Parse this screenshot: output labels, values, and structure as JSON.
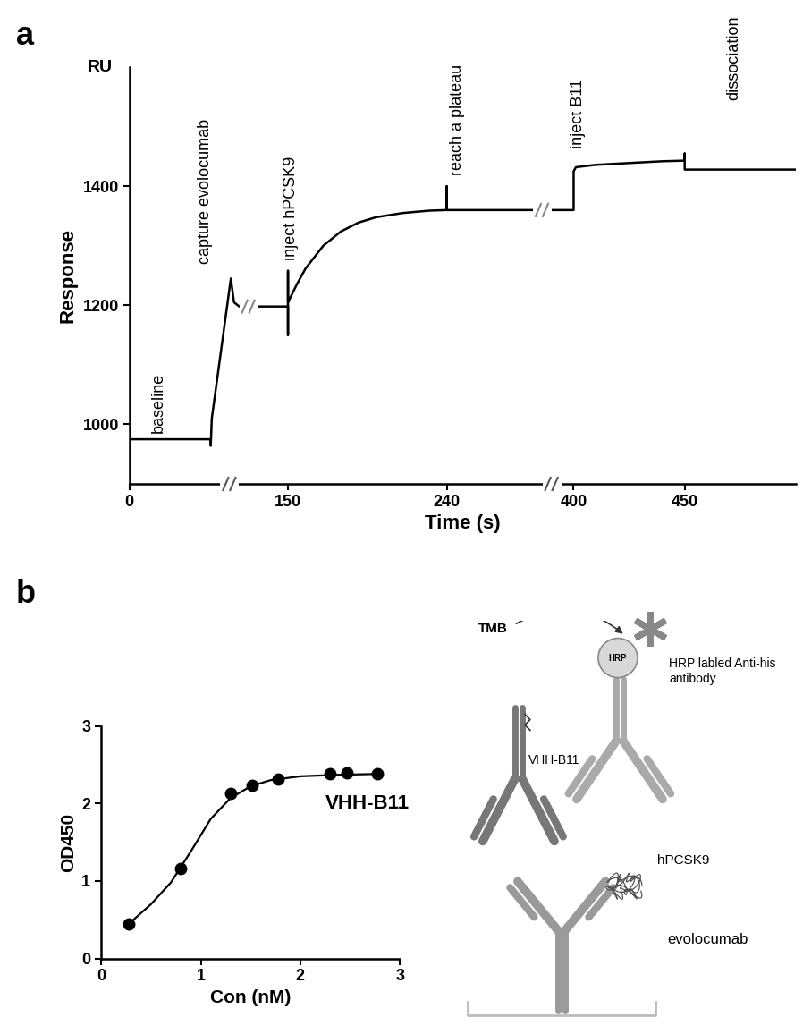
{
  "panel_labels": [
    "a",
    "b"
  ],
  "chart_data": [
    {
      "type": "line",
      "x_label": "Time (s)",
      "y_label": "Response",
      "y_unit_label": "RU",
      "x": [
        3,
        77,
        77,
        78,
        96,
        99,
        104,
        150,
        150,
        150,
        150,
        155,
        160,
        170,
        180,
        190,
        200,
        215,
        230,
        240,
        240,
        240,
        400,
        400,
        401,
        410,
        425,
        440,
        450,
        450,
        450,
        500
      ],
      "values": [
        975,
        975,
        964,
        1010,
        1245,
        1205,
        1198,
        1198,
        1150,
        1258,
        1205,
        1235,
        1262,
        1300,
        1324,
        1339,
        1348,
        1355,
        1359,
        1360,
        1400,
        1360,
        1360,
        1425,
        1432,
        1436,
        1439,
        1442,
        1443,
        1455,
        1428,
        1428
      ],
      "color": "#000000",
      "xlim": [
        0,
        500
      ],
      "xticks": [
        0,
        150,
        240,
        400,
        450
      ],
      "ylim": [
        900,
        1600
      ],
      "yticks": [
        1000,
        1200,
        1400
      ],
      "annotations": [
        {
          "text": "baseline",
          "x": 28,
          "y": 985
        },
        {
          "text": "capture evolocumab",
          "x": 72,
          "y": 1270
        },
        {
          "text": "inject hPCSK9",
          "x": 152,
          "y": 1275
        },
        {
          "text": "reach a plateau",
          "x": 254,
          "y": 1419
        },
        {
          "text": "inject B11",
          "x": 402,
          "y": 1463
        },
        {
          "text": "dissociation",
          "x": 472,
          "y": 1545
        }
      ]
    },
    {
      "type": "scatter",
      "x_label": "Con (nM)",
      "y_label": "OD450",
      "series": [
        {
          "type": "scatter",
          "marker": "circle",
          "color": "#000000",
          "x": [
            0.28,
            0.8,
            1.3,
            1.52,
            1.78,
            2.3,
            2.47,
            2.77
          ],
          "values": [
            0.45,
            1.16,
            2.13,
            2.23,
            2.31,
            2.38,
            2.39,
            2.38
          ]
        },
        {
          "type": "line",
          "line_style": "solid",
          "color": "#000000",
          "x": [
            0.28,
            0.5,
            0.7,
            0.9,
            1.1,
            1.3,
            1.5,
            1.7,
            2.0,
            2.4,
            2.77
          ],
          "values": [
            0.45,
            0.7,
            0.98,
            1.38,
            1.8,
            2.07,
            2.22,
            2.3,
            2.35,
            2.37,
            2.38
          ]
        }
      ],
      "xlim": [
        0,
        3
      ],
      "xticks": [
        0,
        1,
        2,
        3
      ],
      "ylim": [
        0,
        3
      ],
      "yticks": [
        0,
        1,
        2,
        3
      ],
      "annotations": [
        {
          "text": "VHH-B11",
          "x": 2.25,
          "y": 2.0
        }
      ]
    }
  ],
  "diagram": {
    "labels": {
      "substrate": "TMB",
      "enzyme": "HRP",
      "detection": "HRP labled Anti-his\nantibody",
      "nanobody": "VHH-B11",
      "antigen": "hPCSK9",
      "capture": "evolocumab"
    }
  }
}
